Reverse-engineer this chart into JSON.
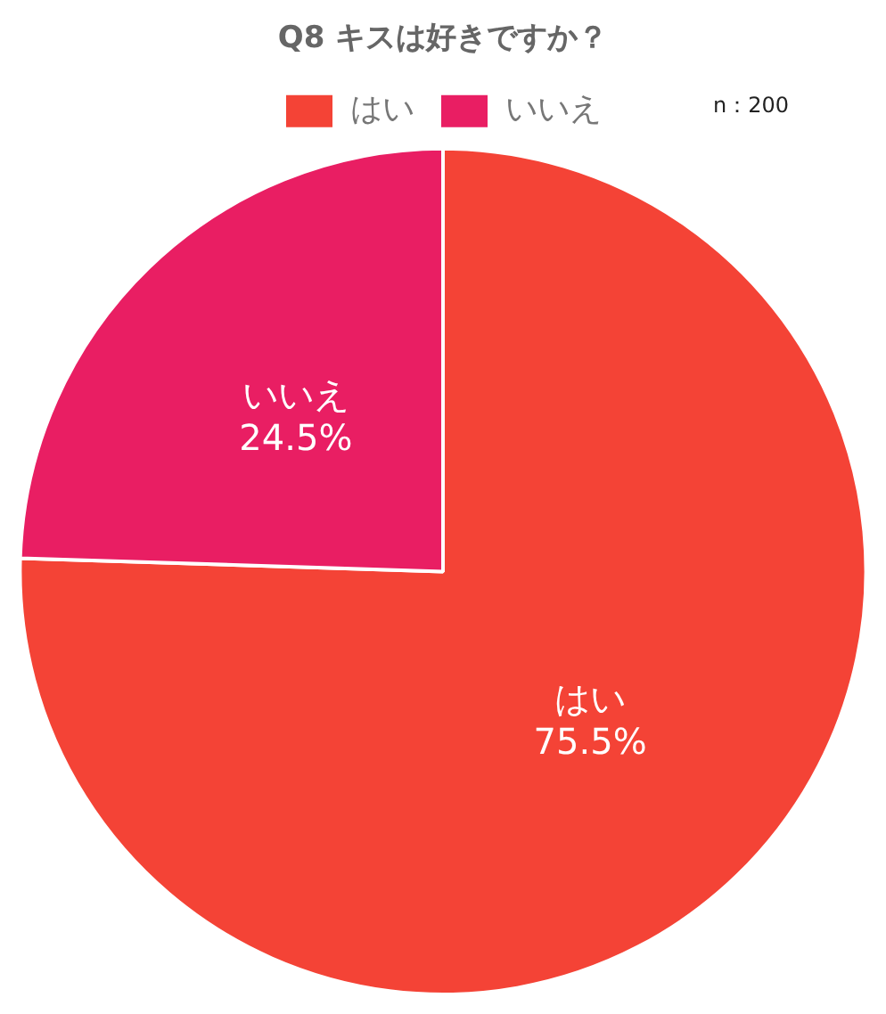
{
  "chart_data": {
    "type": "pie",
    "title": "Q8 キスは好きですか？",
    "categories": [
      "はい",
      "いいえ"
    ],
    "values": [
      75.5,
      24.5
    ],
    "colors": [
      "#f44336",
      "#e91e63"
    ],
    "value_labels": [
      "75.5%",
      "24.5%"
    ],
    "legend": "top",
    "annotations": [
      "n：200"
    ]
  }
}
